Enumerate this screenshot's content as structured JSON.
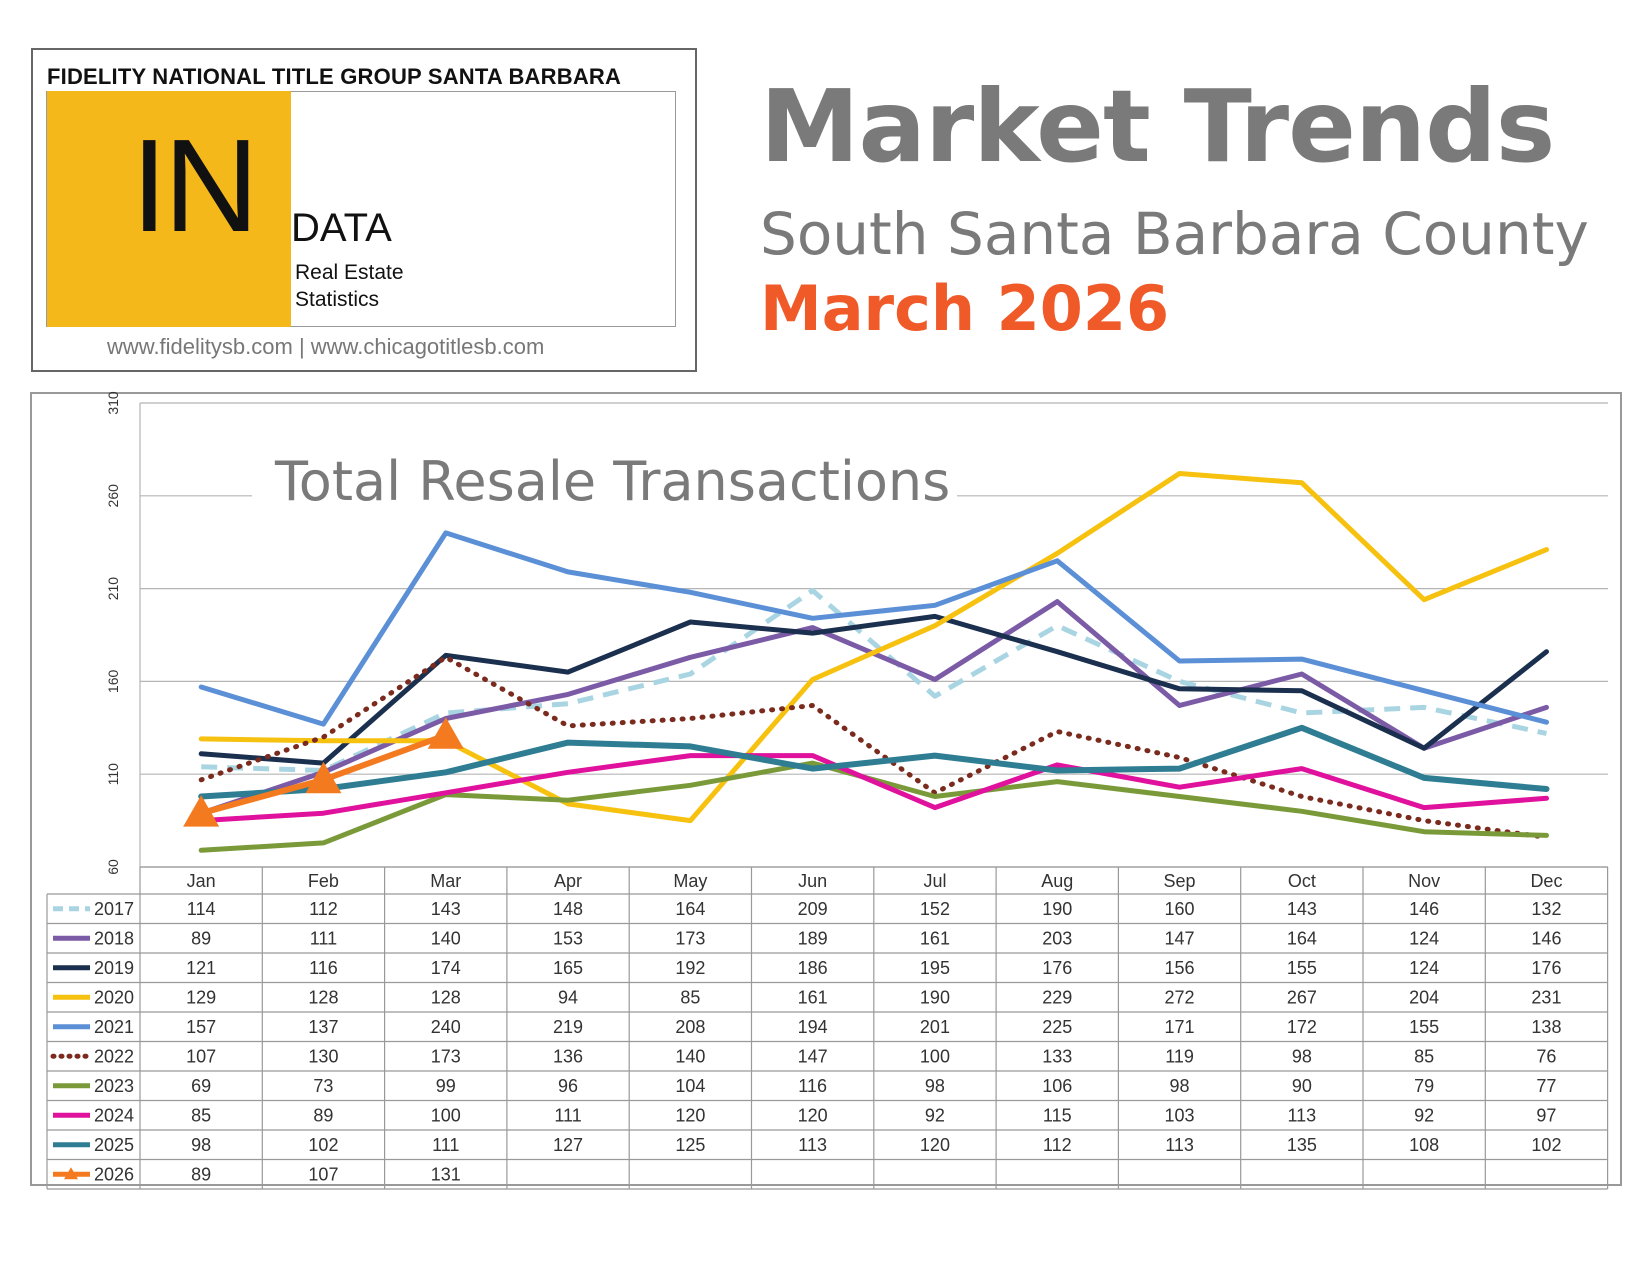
{
  "logo": {
    "header": "FIDELITY NATIONAL TITLE GROUP SANTA BARBARA",
    "big_text": "IN",
    "data_text": "DATA",
    "sub_line1": "Real Estate",
    "sub_line2": "Statistics",
    "urls": "www.fidelitysb.com | www.chicagotitlesb.com",
    "brand_color": "#f5b81a"
  },
  "heading": {
    "title": "Market Trends",
    "region": "South Santa Barbara County",
    "date": "March 2026",
    "title_color": "#7a7a7a",
    "date_color": "#f05a28"
  },
  "chart_data": {
    "type": "line",
    "title": "Total Resale Transactions",
    "xlabel": "",
    "ylabel": "",
    "ylim": [
      60,
      310
    ],
    "yticks": [
      60,
      110,
      160,
      210,
      260,
      310
    ],
    "grid": true,
    "legend": "table-left",
    "categories": [
      "Jan",
      "Feb",
      "Mar",
      "Apr",
      "May",
      "Jun",
      "Jul",
      "Aug",
      "Sep",
      "Oct",
      "Nov",
      "Dec"
    ],
    "series": [
      {
        "name": "2017",
        "color": "#a9d5e3",
        "style": "dashed",
        "values": [
          114,
          112,
          143,
          148,
          164,
          209,
          152,
          190,
          160,
          143,
          146,
          132
        ]
      },
      {
        "name": "2018",
        "color": "#7b5aa6",
        "style": "solid",
        "values": [
          89,
          111,
          140,
          153,
          173,
          189,
          161,
          203,
          147,
          164,
          124,
          146
        ]
      },
      {
        "name": "2019",
        "color": "#1b2f4e",
        "style": "solid",
        "values": [
          121,
          116,
          174,
          165,
          192,
          186,
          195,
          176,
          156,
          155,
          124,
          176
        ]
      },
      {
        "name": "2020",
        "color": "#f7c10f",
        "style": "solid",
        "values": [
          129,
          128,
          128,
          94,
          85,
          161,
          190,
          229,
          272,
          267,
          204,
          231
        ]
      },
      {
        "name": "2021",
        "color": "#5b8fd6",
        "style": "solid",
        "values": [
          157,
          137,
          240,
          219,
          208,
          194,
          201,
          225,
          171,
          172,
          155,
          138
        ]
      },
      {
        "name": "2022",
        "color": "#7a2b1e",
        "style": "dotted",
        "values": [
          107,
          130,
          173,
          136,
          140,
          147,
          100,
          133,
          119,
          98,
          85,
          76
        ]
      },
      {
        "name": "2023",
        "color": "#7a9a3a",
        "style": "solid",
        "values": [
          69,
          73,
          99,
          96,
          104,
          116,
          98,
          106,
          98,
          90,
          79,
          77
        ]
      },
      {
        "name": "2024",
        "color": "#e0119c",
        "style": "solid",
        "values": [
          85,
          89,
          100,
          111,
          120,
          120,
          92,
          115,
          103,
          113,
          92,
          97
        ]
      },
      {
        "name": "2025",
        "color": "#2e7d92",
        "style": "solid",
        "values": [
          98,
          102,
          111,
          127,
          125,
          113,
          120,
          112,
          113,
          135,
          108,
          102
        ]
      },
      {
        "name": "2026",
        "color": "#f47a20",
        "style": "triangle",
        "values": [
          89,
          107,
          131,
          null,
          null,
          null,
          null,
          null,
          null,
          null,
          null,
          null
        ]
      }
    ]
  }
}
